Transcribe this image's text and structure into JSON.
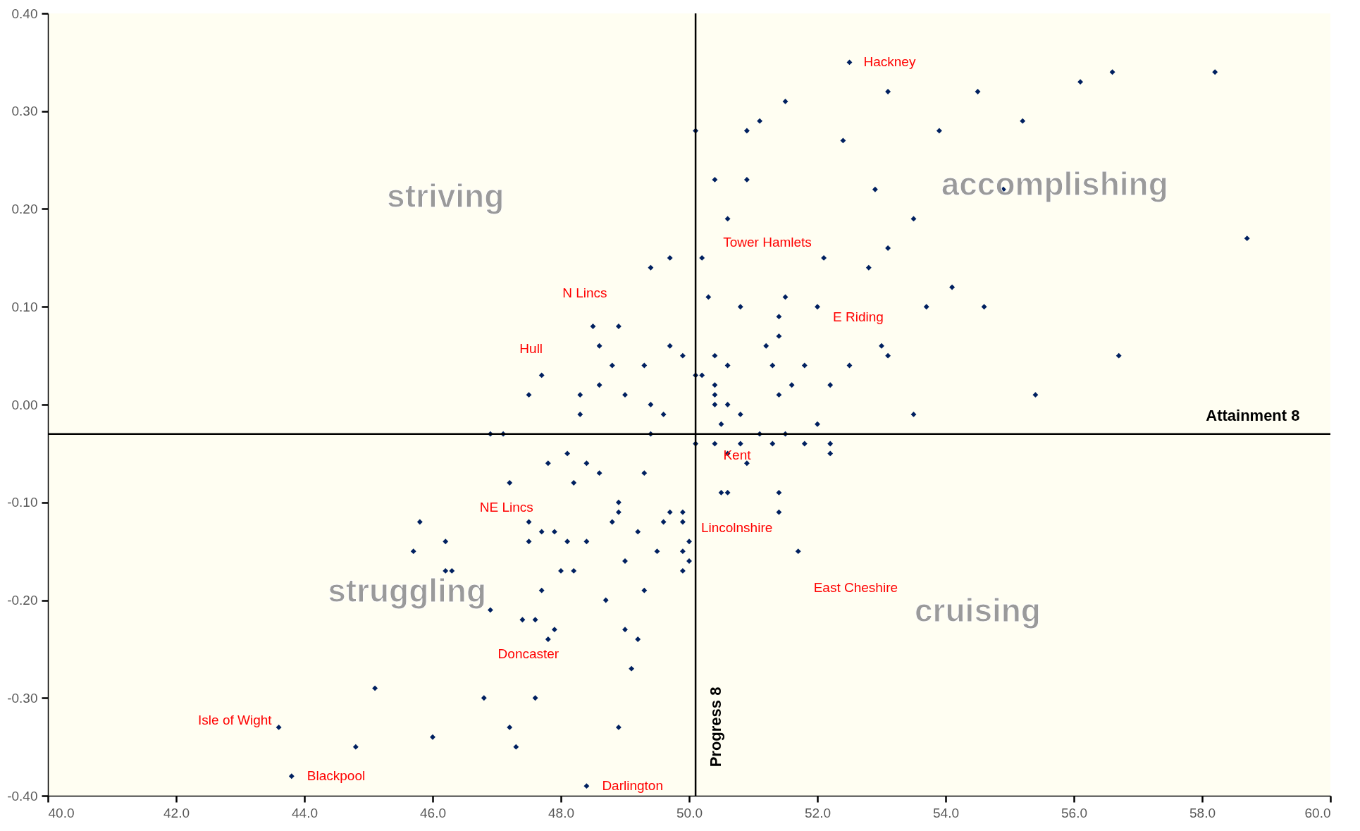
{
  "chart_data": {
    "type": "scatter",
    "xlabel": "Attainment 8",
    "ylabel": "Progress 8",
    "marker": "diamond",
    "xlim": [
      40,
      60
    ],
    "xticks": [
      {
        "value": 40,
        "label": "40.0"
      },
      {
        "value": 42,
        "label": "42.0"
      },
      {
        "value": 44,
        "label": "44.0"
      },
      {
        "value": 46,
        "label": "46.0"
      },
      {
        "value": 48,
        "label": "48.0"
      },
      {
        "value": 50,
        "label": "50.0"
      },
      {
        "value": 52,
        "label": "52.0"
      },
      {
        "value": 54,
        "label": "54.0"
      },
      {
        "value": 56,
        "label": "56.0"
      },
      {
        "value": 58,
        "label": "58.0"
      },
      {
        "value": 60,
        "label": "60.0"
      }
    ],
    "ylim": [
      -0.4,
      0.4
    ],
    "yticks": [
      {
        "value": -0.4,
        "label": "-0.40"
      },
      {
        "value": -0.3,
        "label": "-0.30"
      },
      {
        "value": -0.2,
        "label": "-0.20"
      },
      {
        "value": -0.1,
        "label": "-0.10"
      },
      {
        "value": 0,
        "label": "0.00"
      },
      {
        "value": 0.1,
        "label": "0.10"
      },
      {
        "value": 0.2,
        "label": "0.20"
      },
      {
        "value": 0.3,
        "label": "0.30"
      },
      {
        "value": 0.4,
        "label": "0.40"
      }
    ],
    "ref_lines": [
      {
        "axis": "y",
        "value": -0.03,
        "color": "#000000"
      },
      {
        "axis": "x",
        "value": 50.1,
        "color": "#000000"
      }
    ],
    "x": [
      52.5,
      53.1,
      54.5,
      56.1,
      56.6,
      58.2,
      51.5,
      51.1,
      55.2,
      50.1,
      50.9,
      53.9,
      52.4,
      50.4,
      50.9,
      52.9,
      54.9,
      50.6,
      53.5,
      58.7,
      53.1,
      49.7,
      50.2,
      52.1,
      49.4,
      52.8,
      54.1,
      50.3,
      51.5,
      50.8,
      52.0,
      53.7,
      54.6,
      51.4,
      48.5,
      48.9,
      51.4,
      48.6,
      49.7,
      51.2,
      53.0,
      49.9,
      50.4,
      53.1,
      56.7,
      48.8,
      49.3,
      50.6,
      51.3,
      51.8,
      52.5,
      47.7,
      50.1,
      50.2,
      48.6,
      50.4,
      51.6,
      52.2,
      47.5,
      48.3,
      49.0,
      50.4,
      51.4,
      55.4,
      49.4,
      50.4,
      50.6,
      48.3,
      49.6,
      50.8,
      53.5,
      50.5,
      52.0,
      46.9,
      47.1,
      49.4,
      51.1,
      51.5,
      50.1,
      50.4,
      50.8,
      51.3,
      51.8,
      52.2,
      48.1,
      50.6,
      52.2,
      47.8,
      48.4,
      50.9,
      48.6,
      49.3,
      47.2,
      48.2,
      50.5,
      50.6,
      51.4,
      48.9,
      48.9,
      49.7,
      49.9,
      51.4,
      45.8,
      47.5,
      48.8,
      49.6,
      49.9,
      47.7,
      47.9,
      49.2,
      46.2,
      47.5,
      48.1,
      48.4,
      50.0,
      45.7,
      49.5,
      49.9,
      51.7,
      49.0,
      50.0,
      46.2,
      46.3,
      48.0,
      48.2,
      49.9,
      47.7,
      49.3,
      48.7,
      46.9,
      47.4,
      47.6,
      47.9,
      49.0,
      47.8,
      49.2,
      49.1,
      45.1,
      46.8,
      47.6,
      43.6,
      47.2,
      48.9,
      46.0,
      44.8,
      47.3,
      43.8,
      48.4
    ],
    "series": [
      {
        "color": "#002060",
        "values": [
          0.35,
          0.32,
          0.32,
          0.33,
          0.34,
          0.34,
          0.31,
          0.29,
          0.29,
          0.28,
          0.28,
          0.28,
          0.27,
          0.23,
          0.23,
          0.22,
          0.22,
          0.19,
          0.19,
          0.17,
          0.16,
          0.15,
          0.15,
          0.15,
          0.14,
          0.14,
          0.12,
          0.11,
          0.11,
          0.1,
          0.1,
          0.1,
          0.1,
          0.09,
          0.08,
          0.08,
          0.07,
          0.06,
          0.06,
          0.06,
          0.06,
          0.05,
          0.05,
          0.05,
          0.05,
          0.04,
          0.04,
          0.04,
          0.04,
          0.04,
          0.04,
          0.03,
          0.03,
          0.03,
          0.02,
          0.02,
          0.02,
          0.02,
          0.01,
          0.01,
          0.01,
          0.01,
          0.01,
          0.01,
          0.0,
          0.0,
          0.0,
          -0.01,
          -0.01,
          -0.01,
          -0.01,
          -0.02,
          -0.02,
          -0.03,
          -0.03,
          -0.03,
          -0.03,
          -0.03,
          -0.04,
          -0.04,
          -0.04,
          -0.04,
          -0.04,
          -0.04,
          -0.05,
          -0.05,
          -0.05,
          -0.06,
          -0.06,
          -0.06,
          -0.07,
          -0.07,
          -0.08,
          -0.08,
          -0.09,
          -0.09,
          -0.09,
          -0.1,
          -0.11,
          -0.11,
          -0.11,
          -0.11,
          -0.12,
          -0.12,
          -0.12,
          -0.12,
          -0.12,
          -0.13,
          -0.13,
          -0.13,
          -0.14,
          -0.14,
          -0.14,
          -0.14,
          -0.14,
          -0.15,
          -0.15,
          -0.15,
          -0.15,
          -0.16,
          -0.16,
          -0.17,
          -0.17,
          -0.17,
          -0.17,
          -0.17,
          -0.19,
          -0.19,
          -0.2,
          -0.21,
          -0.22,
          -0.22,
          -0.23,
          -0.23,
          -0.24,
          -0.24,
          -0.27,
          -0.29,
          -0.3,
          -0.3,
          -0.33,
          -0.33,
          -0.33,
          -0.34,
          -0.35,
          -0.35,
          -0.38,
          -0.39
        ]
      }
    ],
    "annotations": [
      "striving",
      "accomplishing",
      "struggling",
      "cruising",
      {
        "text": "Hackney",
        "x": 52.5,
        "y": 0.35
      },
      {
        "text": "Tower Hamlets",
        "x": 50.2,
        "y": 0.15
      },
      {
        "text": "N Lincs",
        "x": 48.9,
        "y": 0.08
      },
      {
        "text": "E Riding",
        "x": 52.0,
        "y": 0.1
      },
      {
        "text": "Hull",
        "x": 47.7,
        "y": 0.03
      },
      {
        "text": "Kent",
        "x": 50.4,
        "y": -0.04
      },
      {
        "text": "NE Lincs",
        "x": 47.8,
        "y": -0.06
      },
      {
        "text": "Lincolnshire",
        "x": 49.9,
        "y": -0.11
      },
      {
        "text": "East Cheshire",
        "x": 51.7,
        "y": -0.15
      },
      {
        "text": "Doncaster",
        "x": 46.9,
        "y": -0.21
      },
      {
        "text": "Isle of Wight",
        "x": 43.6,
        "y": -0.33
      },
      {
        "text": "Blackpool",
        "x": 43.8,
        "y": -0.38
      },
      {
        "text": "Darlington",
        "x": 48.4,
        "y": -0.39
      }
    ]
  }
}
